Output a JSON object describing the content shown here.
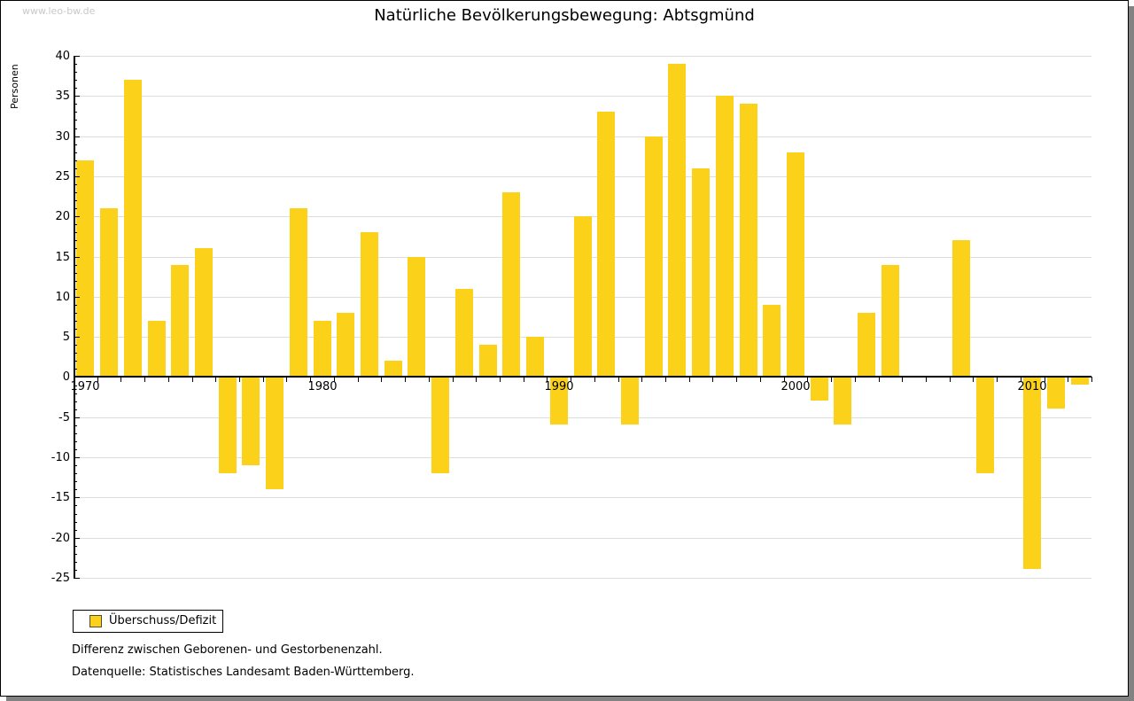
{
  "watermark": "www.leo-bw.de",
  "chart_data": {
    "type": "bar",
    "title": "Natürliche Bevölkerungsbewegung: Abtsgmünd",
    "ylabel": "Personen",
    "xlabel": "",
    "series_name": "Überschuss/Defizit",
    "categories": [
      1970,
      1971,
      1972,
      1973,
      1974,
      1975,
      1976,
      1977,
      1978,
      1979,
      1980,
      1981,
      1982,
      1983,
      1984,
      1985,
      1986,
      1987,
      1988,
      1989,
      1990,
      1991,
      1992,
      1993,
      1994,
      1995,
      1996,
      1997,
      1998,
      1999,
      2000,
      2001,
      2002,
      2003,
      2004,
      2005,
      2006,
      2007,
      2008,
      2009,
      2010,
      2011,
      2012
    ],
    "values": [
      27,
      21,
      37,
      7,
      14,
      16,
      -12,
      -11,
      -14,
      21,
      7,
      8,
      18,
      2,
      15,
      -12,
      11,
      4,
      23,
      5,
      -6,
      20,
      33,
      -6,
      30,
      39,
      26,
      35,
      34,
      9,
      28,
      -3,
      -6,
      8,
      14,
      0,
      0,
      17,
      -12,
      0,
      -24,
      -4,
      -1
    ],
    "ylim": [
      -25,
      40
    ],
    "ytick_major_step": 5,
    "ytick_minor_step": 1,
    "xtick_labels": [
      "1970",
      "1980",
      "1990",
      "2000",
      "2010"
    ],
    "xtick_label_years": [
      1970,
      1980,
      1990,
      2000,
      2010
    ],
    "grid": true,
    "legend_position": "bottom-left",
    "bar_color": "#fcd119"
  },
  "legend": {
    "label": "Überschuss/Defizit"
  },
  "footnotes": {
    "line1": "Differenz zwischen Geborenen- und Gestorbenenzahl.",
    "line2": "Datenquelle: Statistisches Landesamt Baden-Württemberg."
  },
  "colors": {
    "bar": "#fcd119",
    "grid": "#dddddd",
    "axis": "#000000",
    "text": "#000000",
    "watermark": "#c8c8c8",
    "frame_shadow": "#828282"
  }
}
